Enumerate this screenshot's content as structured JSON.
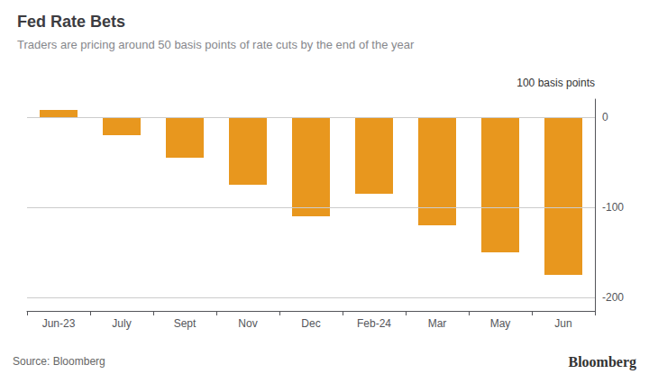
{
  "chart_data": {
    "type": "bar",
    "title": "Fed Rate Bets",
    "subtitle": "Traders are pricing around 50 basis points of rate cuts by the end of the year",
    "annotations": [
      "100 basis points",
      "Source: Bloomberg",
      "Bloomberg"
    ],
    "categories": [
      "Jun-23",
      "July",
      "Sept",
      "Nov",
      "Dec",
      "Feb-24",
      "Mar",
      "May",
      "Jun"
    ],
    "values": [
      8,
      -20,
      -45,
      -75,
      -110,
      -85,
      -120,
      -150,
      -175
    ],
    "color": "#E8971E",
    "ylim": [
      -215,
      20
    ],
    "yticks": [
      0,
      -100,
      -200
    ],
    "grid": true
  }
}
